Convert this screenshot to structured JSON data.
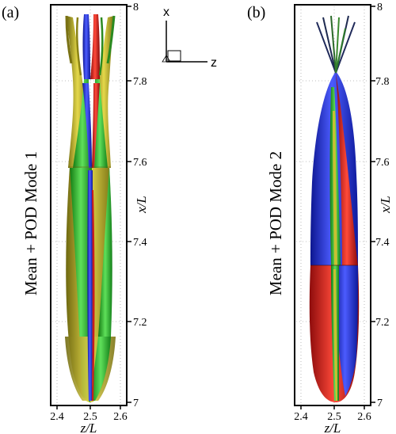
{
  "panels": [
    {
      "id": "a",
      "label": "(a)",
      "ylabel": "Mean + POD Mode 1",
      "xlabel": "z/L",
      "xaxis_label": "x/L",
      "x_ticks": [
        "2.4",
        "2.5",
        "2.6"
      ],
      "y_ticks": [
        "8",
        "7.8",
        "7.6",
        "7.4",
        "7.2",
        "7"
      ],
      "colors": {
        "lobe_primary": "#b9ad1e",
        "lobe_secondary": "#2db82a",
        "accent_blue": "#2233d8",
        "accent_red": "#d42020"
      }
    },
    {
      "id": "b",
      "label": "(b)",
      "ylabel": "Mean + POD Mode 2",
      "xlabel": "z/L",
      "xaxis_label": "x/L",
      "x_ticks": [
        "2.4",
        "2.5",
        "2.6"
      ],
      "y_ticks": [
        "8",
        "7.8",
        "7.6",
        "7.4",
        "7.2",
        "7"
      ],
      "colors": {
        "lobe_primary": "#2233d8",
        "lobe_secondary": "#d42020",
        "accent_green": "#2db82a",
        "accent_yellow": "#b9ad1e"
      }
    }
  ],
  "coordinate_system": {
    "vertical": "x",
    "horizontal": "z"
  }
}
